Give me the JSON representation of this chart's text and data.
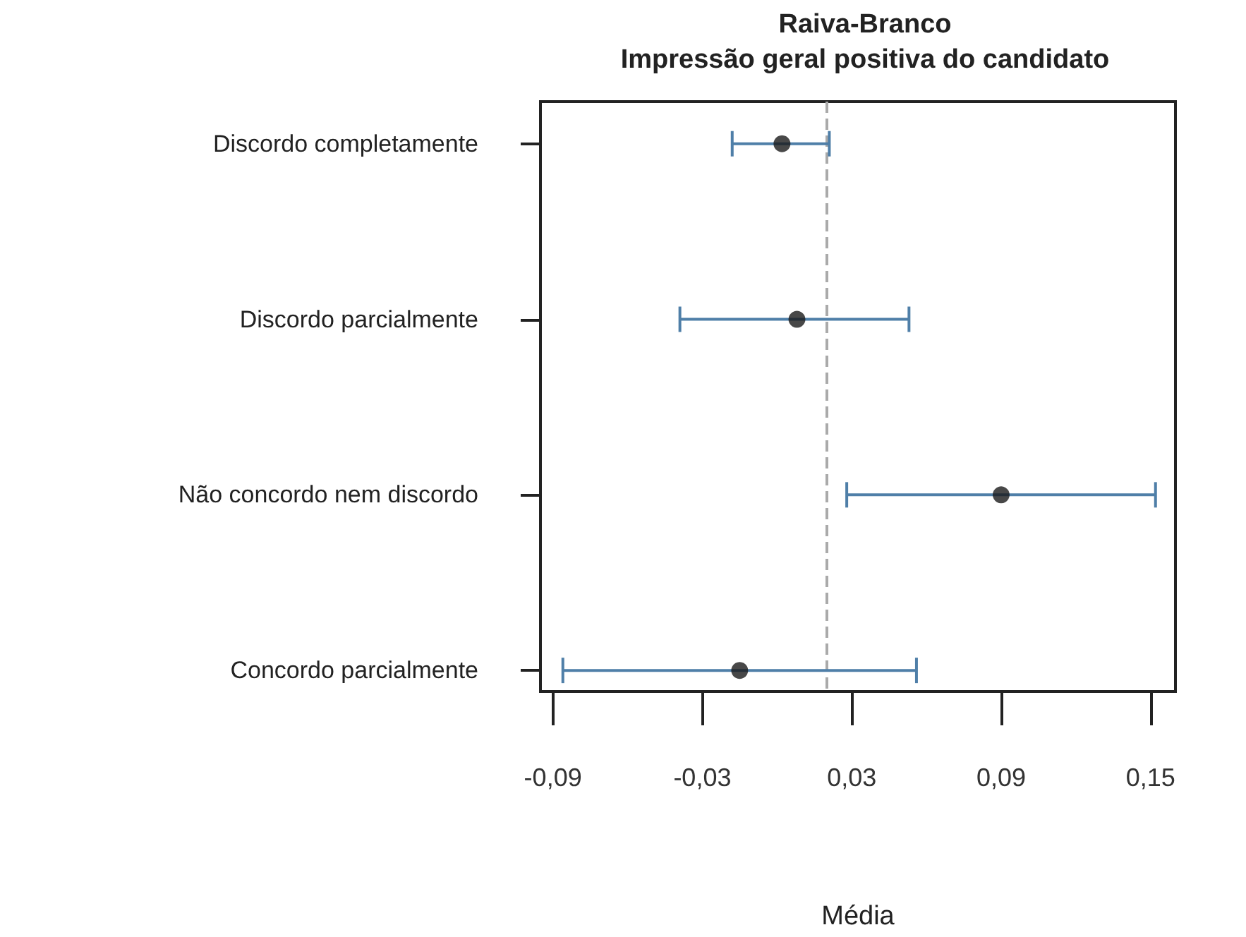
{
  "chart_data": {
    "type": "scatter",
    "orientation": "horizontal",
    "title": "Raiva-Branco",
    "subtitle": "Impressão geral positiva do candidato",
    "xlabel": "Média",
    "categories": [
      "Discordo completamente",
      "Discordo parcialmente",
      "Não concordo nem discordo",
      "Concordo parcialmente"
    ],
    "values": [
      0.002,
      0.008,
      0.09,
      -0.015
    ],
    "errors": [
      [
        -0.018,
        0.021
      ],
      [
        -0.039,
        0.053
      ],
      [
        0.028,
        0.152
      ],
      [
        -0.086,
        0.056
      ]
    ],
    "color": "#1a1a1a",
    "xlim": [
      -0.095,
      0.16
    ],
    "xticks": [
      {
        "value": -0.09,
        "label": "-0,09"
      },
      {
        "value": -0.03,
        "label": "-0,03"
      },
      {
        "value": 0.03,
        "label": "0,03"
      },
      {
        "value": 0.09,
        "label": "0,09"
      },
      {
        "value": 0.15,
        "label": "0,15"
      }
    ],
    "ref_lines": [
      {
        "axis": "x",
        "value": 0.02,
        "color": "#aaaaaa",
        "line_style": "dashed"
      }
    ],
    "marker": "circle"
  }
}
